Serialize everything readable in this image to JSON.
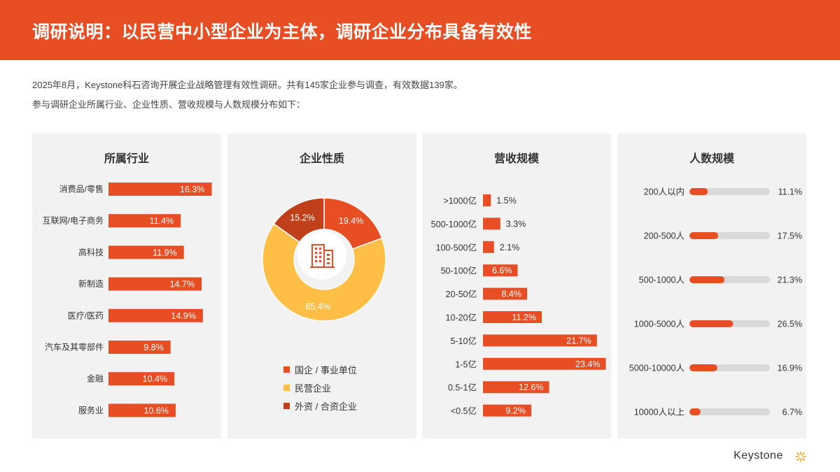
{
  "header": {
    "title": "调研说明：以民营中小型企业为主体，调研企业分布具备有效性"
  },
  "intro": {
    "line1": "2025年8月，Keystone科石咨询开展企业战略管理有效性调研。共有145家企业参与调查，有效数据139家。",
    "line2": "参与调研企业所属行业、企业性质、营收规模与人数规模分布如下："
  },
  "colors": {
    "accent": "#E84E24",
    "yellow": "#FFBE45",
    "dark_orange": "#C0401C",
    "track": "#D9D9D9",
    "panel_bg": "#F2F2F2"
  },
  "chart_data": [
    {
      "type": "bar",
      "orientation": "horizontal",
      "title": "所属行业",
      "categories": [
        "消费品/零售",
        "互联网/电子商务",
        "高科技",
        "新制造",
        "医疗/医药",
        "汽车及其零部件",
        "金融",
        "服务业"
      ],
      "values": [
        16.3,
        11.4,
        11.9,
        14.7,
        14.9,
        9.8,
        10.4,
        10.6
      ],
      "labels": [
        "16.3%",
        "11.4%",
        "11.9%",
        "14.7%",
        "14.9%",
        "9.8%",
        "10.4%",
        "10.6%"
      ],
      "unit": "%"
    },
    {
      "type": "pie",
      "variant": "donut",
      "title": "企业性质",
      "categories": [
        "国企 / 事业单位",
        "民营企业",
        "外资 / 合资企业"
      ],
      "values": [
        19.4,
        65.4,
        15.2
      ],
      "labels": [
        "19.4%",
        "65.4%",
        "15.2%"
      ],
      "colors": [
        "#E84E24",
        "#FFBE45",
        "#C0401C"
      ],
      "center_icon": "building-icon",
      "legend": "bottom"
    },
    {
      "type": "bar",
      "orientation": "horizontal",
      "title": "营收规模",
      "categories": [
        ">1000亿",
        "500-1000亿",
        "100-500亿",
        "50-100亿",
        "20-50亿",
        "10-20亿",
        "5-10亿",
        "1-5亿",
        "0.5-1亿",
        "<0.5亿"
      ],
      "values": [
        1.5,
        3.3,
        2.1,
        6.6,
        8.4,
        11.2,
        21.7,
        23.4,
        12.6,
        9.2
      ],
      "labels": [
        "1.5%",
        "3.3%",
        "2.1%",
        "6.6%",
        "8.4%",
        "11.2%",
        "21.7%",
        "23.4%",
        "12.6%",
        "9.2%"
      ],
      "unit": "%"
    },
    {
      "type": "bar",
      "orientation": "horizontal",
      "variant": "progress",
      "title": "人数规模",
      "categories": [
        "200人以内",
        "200-500人",
        "500-1000人",
        "1000-5000人",
        "5000-10000人",
        "10000人以上"
      ],
      "values": [
        11.1,
        17.5,
        21.3,
        26.5,
        16.9,
        6.7
      ],
      "labels": [
        "11.1%",
        "17.5%",
        "21.3%",
        "26.5%",
        "16.9%",
        "6.7%"
      ],
      "unit": "%"
    }
  ],
  "footer": {
    "logo_text": "Keystone",
    "logo_icon": "sun-star-icon"
  }
}
